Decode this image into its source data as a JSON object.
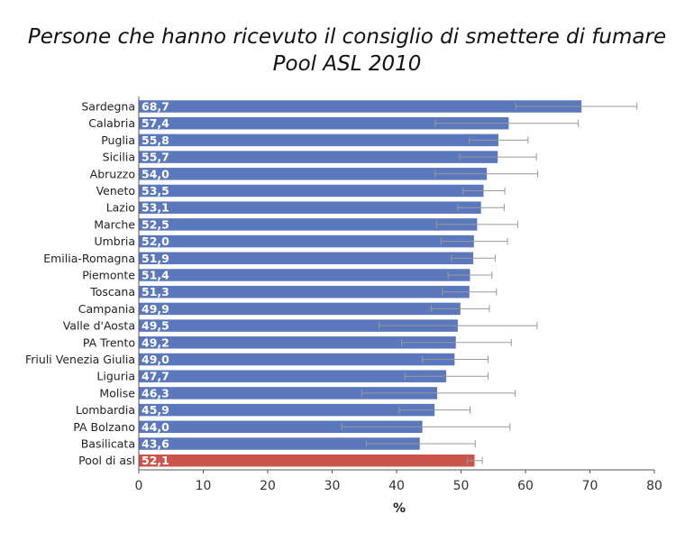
{
  "chart_data": {
    "type": "bar",
    "orientation": "horizontal",
    "title": "Persone che hanno ricevuto il consiglio di smettere di fumare",
    "subtitle": "Pool ASL 2010",
    "xlabel": "%",
    "ylabel": "",
    "xlim": [
      0,
      80
    ],
    "xticks": [
      "0",
      "10",
      "20",
      "30",
      "40",
      "50",
      "60",
      "70",
      "80"
    ],
    "grid": false,
    "colors": {
      "regions": "#5b78bc",
      "pool": "#c9554d",
      "errorbar": "#999999",
      "axis": "#555555"
    },
    "categories": [
      "Sardegna",
      "Calabria",
      "Puglia",
      "Sicilia",
      "Abruzzo",
      "Veneto",
      "Lazio",
      "Marche",
      "Umbria",
      "Emilia-Romagna",
      "Piemonte",
      "Toscana",
      "Campania",
      "Valle d'Aosta",
      "PA Trento",
      "Friuli Venezia Giulia",
      "Liguria",
      "Molise",
      "Lombardia",
      "PA Bolzano",
      "Basilicata",
      "Pool di asl"
    ],
    "values": [
      68.7,
      57.4,
      55.8,
      55.7,
      54.0,
      53.5,
      53.1,
      52.5,
      52.0,
      51.9,
      51.4,
      51.3,
      49.9,
      49.5,
      49.2,
      49.0,
      47.7,
      46.3,
      45.9,
      44.0,
      43.6,
      52.1
    ],
    "value_labels": [
      "68,7",
      "57,4",
      "55,8",
      "55,7",
      "54,0",
      "53,5",
      "53,1",
      "52,5",
      "52,0",
      "51,9",
      "51,4",
      "51,3",
      "49,9",
      "49,5",
      "49,2",
      "49,0",
      "47,7",
      "46,3",
      "45,9",
      "44,0",
      "43,6",
      "52,1"
    ],
    "ci_low": [
      58.5,
      46.0,
      51.3,
      49.8,
      46.0,
      50.3,
      49.5,
      46.2,
      46.9,
      48.5,
      48.0,
      47.1,
      45.4,
      37.3,
      40.8,
      44.0,
      41.3,
      34.6,
      40.4,
      31.5,
      35.3,
      51.0
    ],
    "ci_high": [
      77.3,
      68.2,
      60.4,
      61.7,
      61.9,
      56.8,
      56.7,
      58.8,
      57.2,
      55.3,
      54.8,
      55.5,
      54.4,
      61.8,
      57.8,
      54.2,
      54.2,
      58.4,
      51.4,
      57.6,
      52.2,
      53.3
    ]
  }
}
